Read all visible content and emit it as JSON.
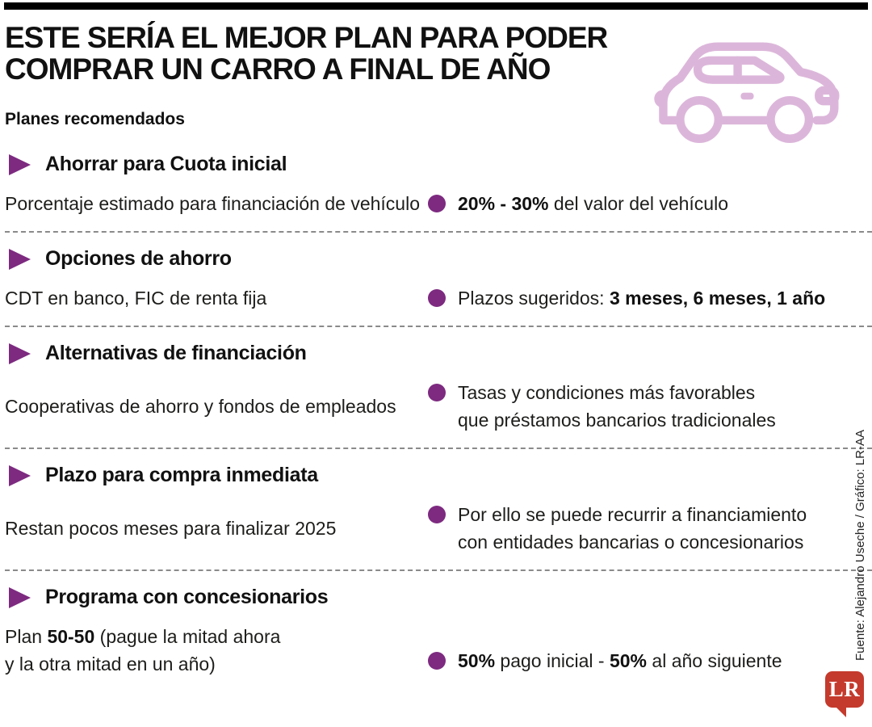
{
  "colors": {
    "accent": "#7d2a80",
    "car_icon": "#dcb6da",
    "logo_red": "#c43a2c",
    "dash_line": "#8a8a8a"
  },
  "header": {
    "title_line1": "ESTE SERÍA EL MEJOR PLAN PARA PODER",
    "title_line2": "COMPRAR UN CARRO A FINAL DE AÑO",
    "subtitle": "Planes recomendados"
  },
  "sections": [
    {
      "heading": "Ahorrar para Cuota inicial",
      "left_lines": [
        [
          {
            "t": "Porcentaje estimado para financiación de vehículo",
            "b": false
          }
        ]
      ],
      "right_lines": [
        [
          {
            "t": "20% - 30%",
            "b": true
          },
          {
            "t": " del valor del vehículo",
            "b": false
          }
        ]
      ]
    },
    {
      "heading": "Opciones de ahorro",
      "left_lines": [
        [
          {
            "t": "CDT en banco, FIC de renta fija",
            "b": false
          }
        ]
      ],
      "right_lines": [
        [
          {
            "t": "Plazos sugeridos: ",
            "b": false
          },
          {
            "t": "3 meses, 6 meses, 1 año",
            "b": true
          }
        ]
      ]
    },
    {
      "heading": "Alternativas de financiación",
      "left_lines": [
        [
          {
            "t": "Cooperativas de ahorro y fondos de empleados",
            "b": false
          }
        ]
      ],
      "right_lines": [
        [
          {
            "t": "Tasas y condiciones más favorables",
            "b": false
          }
        ],
        [
          {
            "t": "que préstamos bancarios tradicionales",
            "b": false
          }
        ]
      ]
    },
    {
      "heading": "Plazo para compra inmediata",
      "left_lines": [
        [
          {
            "t": "Restan pocos meses para finalizar 2025",
            "b": false
          }
        ]
      ],
      "right_lines": [
        [
          {
            "t": "Por ello se puede recurrir a financiamiento",
            "b": false
          }
        ],
        [
          {
            "t": "con entidades bancarias o concesionarios",
            "b": false
          }
        ]
      ]
    },
    {
      "heading": "Programa con concesionarios",
      "left_lines": [
        [
          {
            "t": "Plan ",
            "b": false
          },
          {
            "t": "50-50",
            "b": true
          },
          {
            "t": " (pague la mitad ahora",
            "b": false
          }
        ],
        [
          {
            "t": "y la otra mitad en un año)",
            "b": false
          }
        ]
      ],
      "right_lines": [
        [
          {
            "t": "50%",
            "b": true
          },
          {
            "t": " pago inicial - ",
            "b": false
          },
          {
            "t": "50%",
            "b": true
          },
          {
            "t": " al año siguiente",
            "b": false
          }
        ]
      ]
    }
  ],
  "footer": {
    "source_note": "Fuente: Alejandro Useche / Gráfico: LR-AA",
    "logo_text": "LR"
  }
}
